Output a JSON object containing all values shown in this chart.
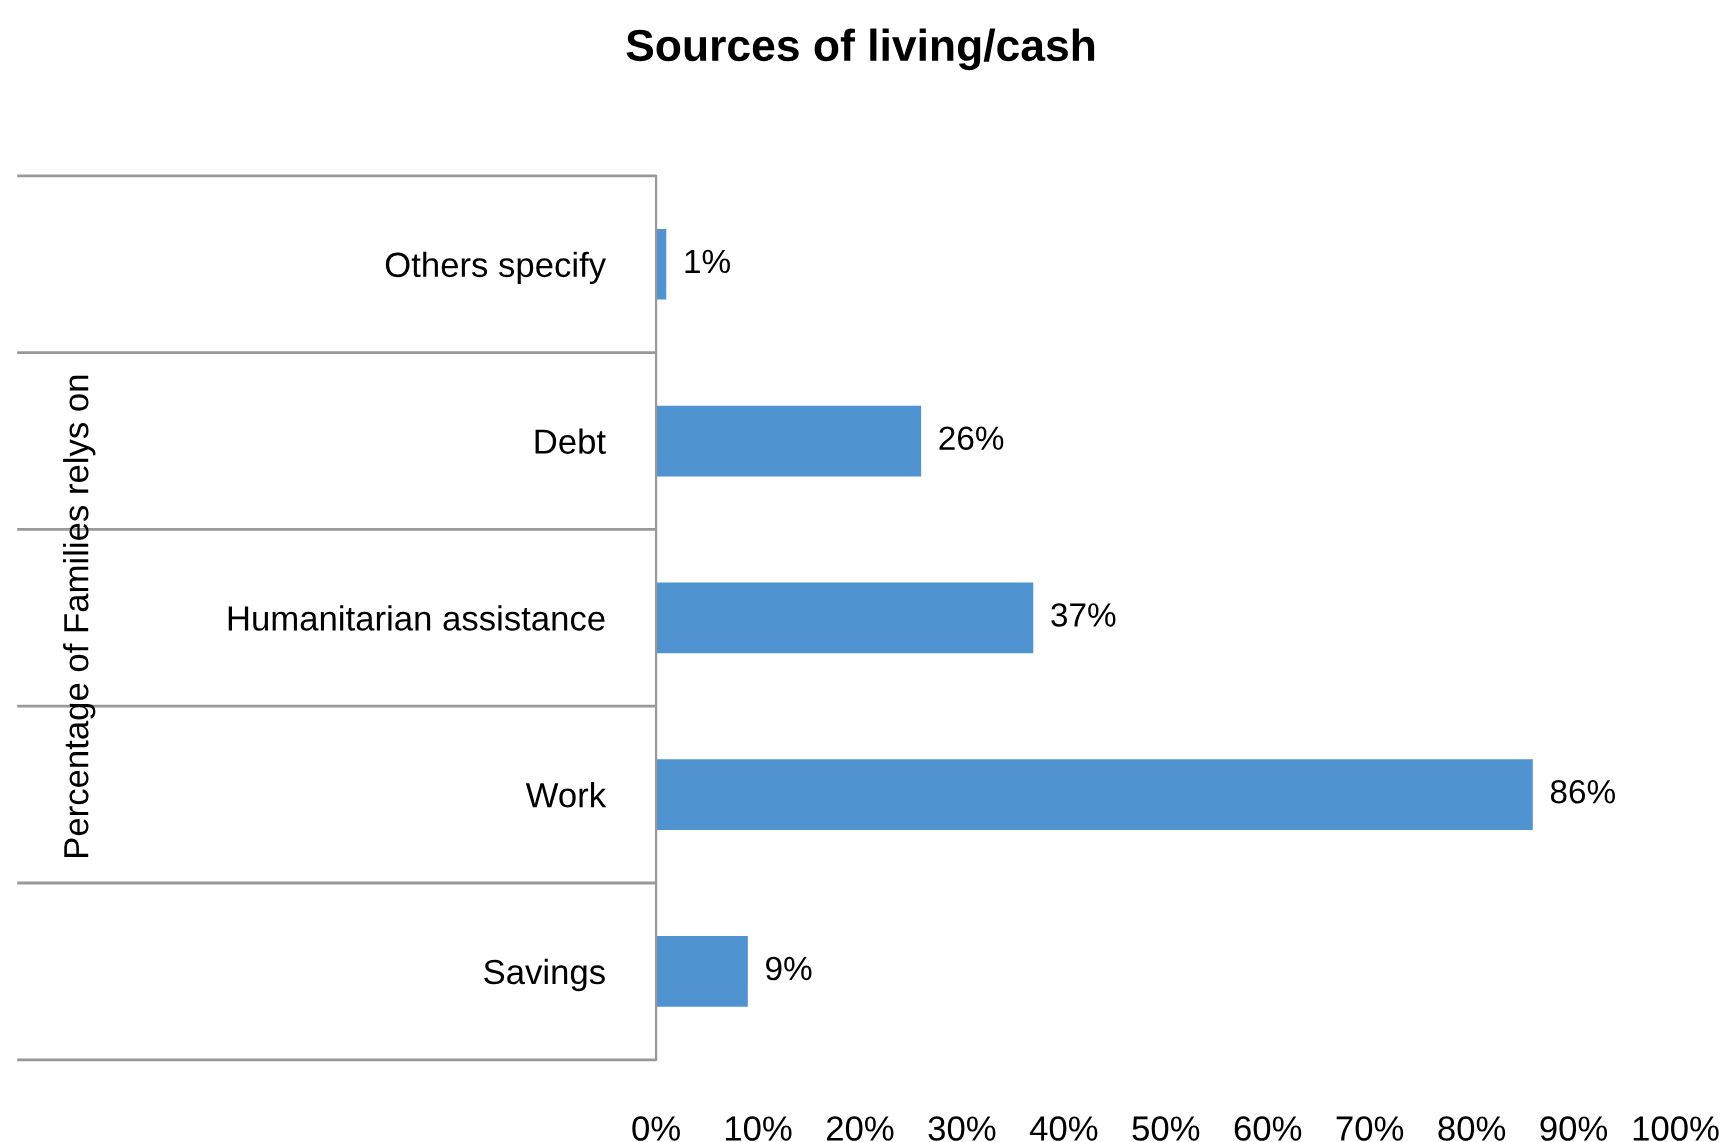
{
  "chart_data": {
    "type": "bar",
    "orientation": "horizontal",
    "title": "Sources of living/cash",
    "annotations": [
      "Percentage of Families relys on"
    ],
    "categories": [
      "Others specify",
      "Debt",
      "Humanitarian assistance",
      "Work",
      "Savings"
    ],
    "values": [
      1,
      26,
      37,
      86,
      9
    ],
    "value_labels": [
      "1%",
      "26%",
      "37%",
      "86%",
      "9%"
    ],
    "color": "#4f93d0",
    "xlim": [
      0,
      100
    ],
    "xticks": [
      {
        "value": 0,
        "label": "0%"
      },
      {
        "value": 10,
        "label": "10%"
      },
      {
        "value": 20,
        "label": "20%"
      },
      {
        "value": 30,
        "label": "30%"
      },
      {
        "value": 40,
        "label": "40%"
      },
      {
        "value": 50,
        "label": "50%"
      },
      {
        "value": 60,
        "label": "60%"
      },
      {
        "value": 70,
        "label": "70%"
      },
      {
        "value": 80,
        "label": "80%"
      },
      {
        "value": 90,
        "label": "90%"
      },
      {
        "value": 100,
        "label": "100%"
      }
    ],
    "grid": false,
    "legend": false
  }
}
